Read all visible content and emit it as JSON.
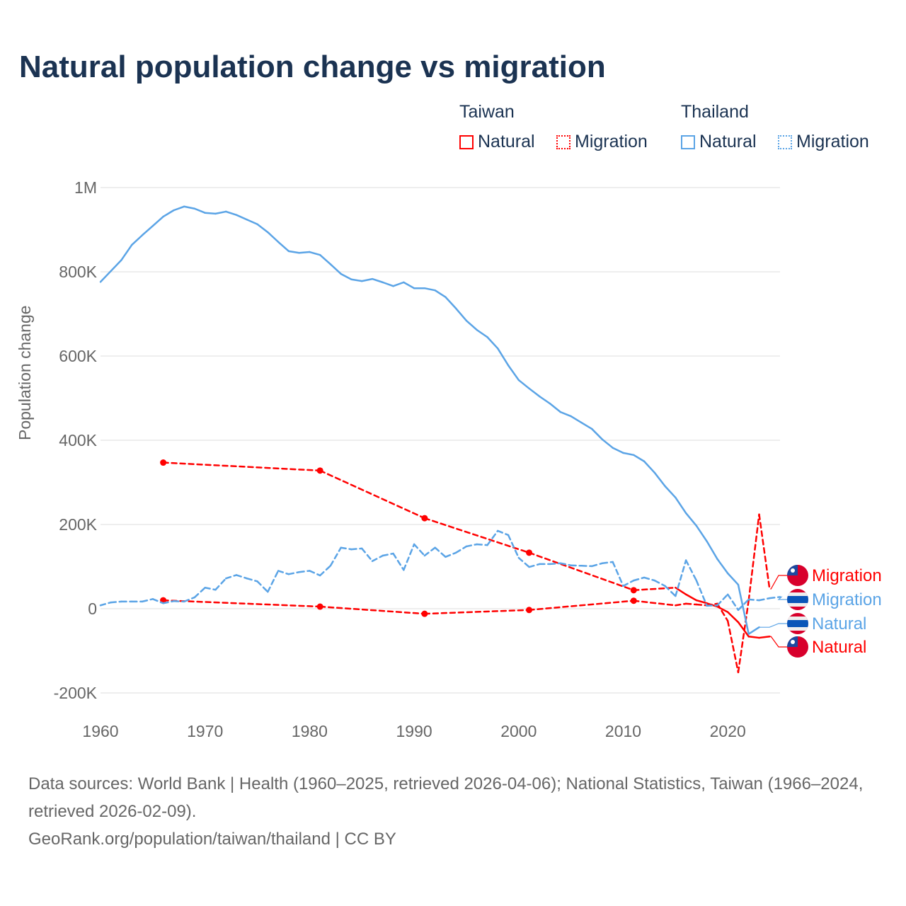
{
  "title": "Natural population change vs migration",
  "legend": {
    "groups": [
      {
        "name": "Taiwan",
        "color": "#ff0000",
        "items": [
          "Natural",
          "Migration"
        ]
      },
      {
        "name": "Thailand",
        "color": "#5ba4e6",
        "items": [
          "Natural",
          "Migration"
        ]
      }
    ]
  },
  "footer": {
    "sources": "Data sources: World Bank | Health (1960–2025, retrieved 2026-04-06); National Statistics, Taiwan (1966–2024, retrieved 2026-02-09).",
    "credit": "GeoRank.org/population/taiwan/thailand | CC BY"
  },
  "chart_data": {
    "type": "line",
    "title": "Natural population change vs migration",
    "xlabel": "",
    "ylabel": "Population change",
    "xlim": [
      1960,
      2025
    ],
    "ylim": [
      -200000,
      1000000
    ],
    "x_ticks": [
      "1960",
      "1970",
      "1980",
      "1990",
      "2000",
      "2010",
      "2020"
    ],
    "y_ticks": [
      {
        "v": 1000000,
        "label": "1M"
      },
      {
        "v": 800000,
        "label": "800K"
      },
      {
        "v": 600000,
        "label": "600K"
      },
      {
        "v": 400000,
        "label": "400K"
      },
      {
        "v": 200000,
        "label": "200K"
      },
      {
        "v": 0,
        "label": "0"
      },
      {
        "v": -200000,
        "label": "-200K"
      }
    ],
    "grid": true,
    "series": [
      {
        "name": "Taiwan Natural",
        "label": "Natural",
        "country": "Taiwan",
        "kind": "natural",
        "color": "#ff0000",
        "x": [
          1966,
          1981,
          1991,
          2001,
          2011,
          2015,
          2016,
          2017,
          2018,
          2019,
          2020,
          2021,
          2022,
          2023,
          2024
        ],
        "y": [
          347000,
          328000,
          215000,
          133000,
          44000,
          50000,
          34000,
          20000,
          13000,
          5000,
          -8000,
          -32000,
          -66000,
          -69000,
          -66000
        ]
      },
      {
        "name": "Taiwan Migration",
        "label": "Migration",
        "country": "Taiwan",
        "kind": "migration",
        "color": "#ff0000",
        "x": [
          1966,
          1981,
          1991,
          2001,
          2011,
          2015,
          2016,
          2017,
          2018,
          2019,
          2020,
          2021,
          2022,
          2023,
          2024
        ],
        "y": [
          20000,
          5000,
          -12000,
          -3000,
          19000,
          8000,
          12000,
          10000,
          8000,
          12000,
          -29000,
          -151000,
          20000,
          224000,
          47000
        ]
      },
      {
        "name": "Thailand Natural",
        "label": "Natural",
        "country": "Thailand",
        "kind": "natural",
        "color": "#5ba4e6",
        "x": [
          1960,
          1961,
          1962,
          1963,
          1964,
          1965,
          1966,
          1967,
          1968,
          1969,
          1970,
          1971,
          1972,
          1973,
          1974,
          1975,
          1976,
          1977,
          1978,
          1979,
          1980,
          1981,
          1982,
          1983,
          1984,
          1985,
          1986,
          1987,
          1988,
          1989,
          1990,
          1991,
          1992,
          1993,
          1994,
          1995,
          1996,
          1997,
          1998,
          1999,
          2000,
          2001,
          2002,
          2003,
          2004,
          2005,
          2006,
          2007,
          2008,
          2009,
          2010,
          2011,
          2012,
          2013,
          2014,
          2015,
          2016,
          2017,
          2018,
          2019,
          2020,
          2021,
          2022,
          2023
        ],
        "y": [
          776000,
          802000,
          828000,
          864000,
          887000,
          909000,
          931000,
          946000,
          955000,
          950000,
          940000,
          938000,
          943000,
          935000,
          924000,
          913000,
          894000,
          871000,
          849000,
          845000,
          847000,
          840000,
          818000,
          795000,
          782000,
          778000,
          783000,
          775000,
          766000,
          775000,
          761000,
          761000,
          756000,
          740000,
          713000,
          684000,
          662000,
          645000,
          618000,
          578000,
          543000,
          523000,
          504000,
          487000,
          467000,
          457000,
          442000,
          427000,
          402000,
          382000,
          370000,
          365000,
          350000,
          323000,
          291000,
          264000,
          227000,
          197000,
          160000,
          118000,
          84000,
          57000,
          -60000,
          -44000
        ]
      },
      {
        "name": "Thailand Migration",
        "label": "Migration",
        "country": "Thailand",
        "kind": "migration",
        "color": "#5ba4e6",
        "x": [
          1960,
          1961,
          1962,
          1963,
          1964,
          1965,
          1966,
          1967,
          1968,
          1969,
          1970,
          1971,
          1972,
          1973,
          1974,
          1975,
          1976,
          1977,
          1978,
          1979,
          1980,
          1981,
          1982,
          1983,
          1984,
          1985,
          1986,
          1987,
          1988,
          1989,
          1990,
          1991,
          1992,
          1993,
          1994,
          1995,
          1996,
          1997,
          1998,
          1999,
          2000,
          2001,
          2002,
          2003,
          2004,
          2005,
          2006,
          2007,
          2008,
          2009,
          2010,
          2011,
          2012,
          2013,
          2014,
          2015,
          2016,
          2017,
          2018,
          2019,
          2020,
          2021,
          2022,
          2023,
          2024,
          2025
        ],
        "y": [
          8000,
          15000,
          17000,
          17000,
          17000,
          23000,
          13000,
          18000,
          17000,
          27000,
          50000,
          45000,
          72000,
          80000,
          72000,
          65000,
          40000,
          90000,
          82000,
          87000,
          90000,
          79000,
          102000,
          145000,
          141000,
          143000,
          113000,
          126000,
          131000,
          92000,
          153000,
          126000,
          145000,
          123000,
          133000,
          148000,
          153000,
          151000,
          185000,
          175000,
          121000,
          99000,
          106000,
          106000,
          108000,
          103000,
          102000,
          101000,
          108000,
          111000,
          54000,
          67000,
          74000,
          67000,
          54000,
          30000,
          115000,
          67000,
          7000,
          8000,
          34000,
          -3000,
          22000,
          20000,
          25000,
          28000
        ]
      }
    ],
    "end_labels": [
      {
        "series": "Taiwan Migration",
        "text": "Migration",
        "color": "#ff0000",
        "flag": "taiwan"
      },
      {
        "series": "Thailand Migration",
        "text": "Migration",
        "color": "#5ba4e6",
        "flag": "thailand"
      },
      {
        "series": "Thailand Natural",
        "text": "Natural",
        "color": "#5ba4e6",
        "flag": "thailand"
      },
      {
        "series": "Taiwan Natural",
        "text": "Natural",
        "color": "#ff0000",
        "flag": "taiwan"
      }
    ]
  }
}
